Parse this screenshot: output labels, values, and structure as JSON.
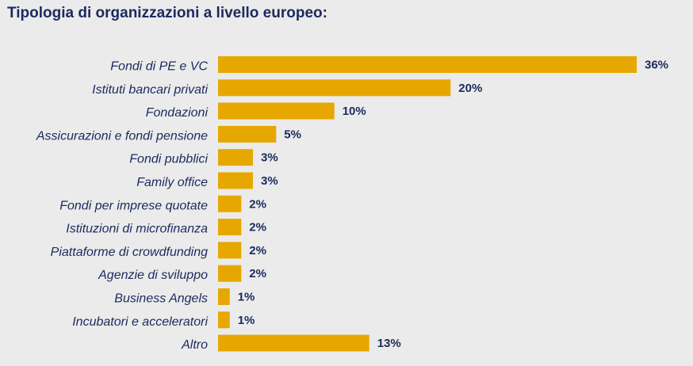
{
  "colors": {
    "bar": "#e6a800",
    "text": "#1b2a5e",
    "background": "#ebebeb"
  },
  "chart_data": {
    "type": "bar",
    "orientation": "horizontal",
    "title": "Tipologia di organizzazioni a livello europeo:",
    "categories": [
      "Fondi di PE e VC",
      "Istituti bancari privati",
      "Fondazioni",
      "Assicurazioni e fondi pensione",
      "Fondi pubblici",
      "Family office",
      "Fondi per imprese quotate",
      "Istituzioni di microfinanza",
      "Piattaforme di crowdfunding",
      "Agenzie di sviluppo",
      "Business Angels",
      "Incubatori e acceleratori",
      "Altro"
    ],
    "values": [
      36,
      20,
      10,
      5,
      3,
      3,
      2,
      2,
      2,
      2,
      1,
      1,
      13
    ],
    "value_labels": [
      "36%",
      "20%",
      "10%",
      "5%",
      "3%",
      "3%",
      "2%",
      "2%",
      "2%",
      "2%",
      "1%",
      "1%",
      "13%"
    ],
    "unit": "%",
    "xlim": [
      0,
      36
    ],
    "grid": false,
    "legend": "none"
  }
}
